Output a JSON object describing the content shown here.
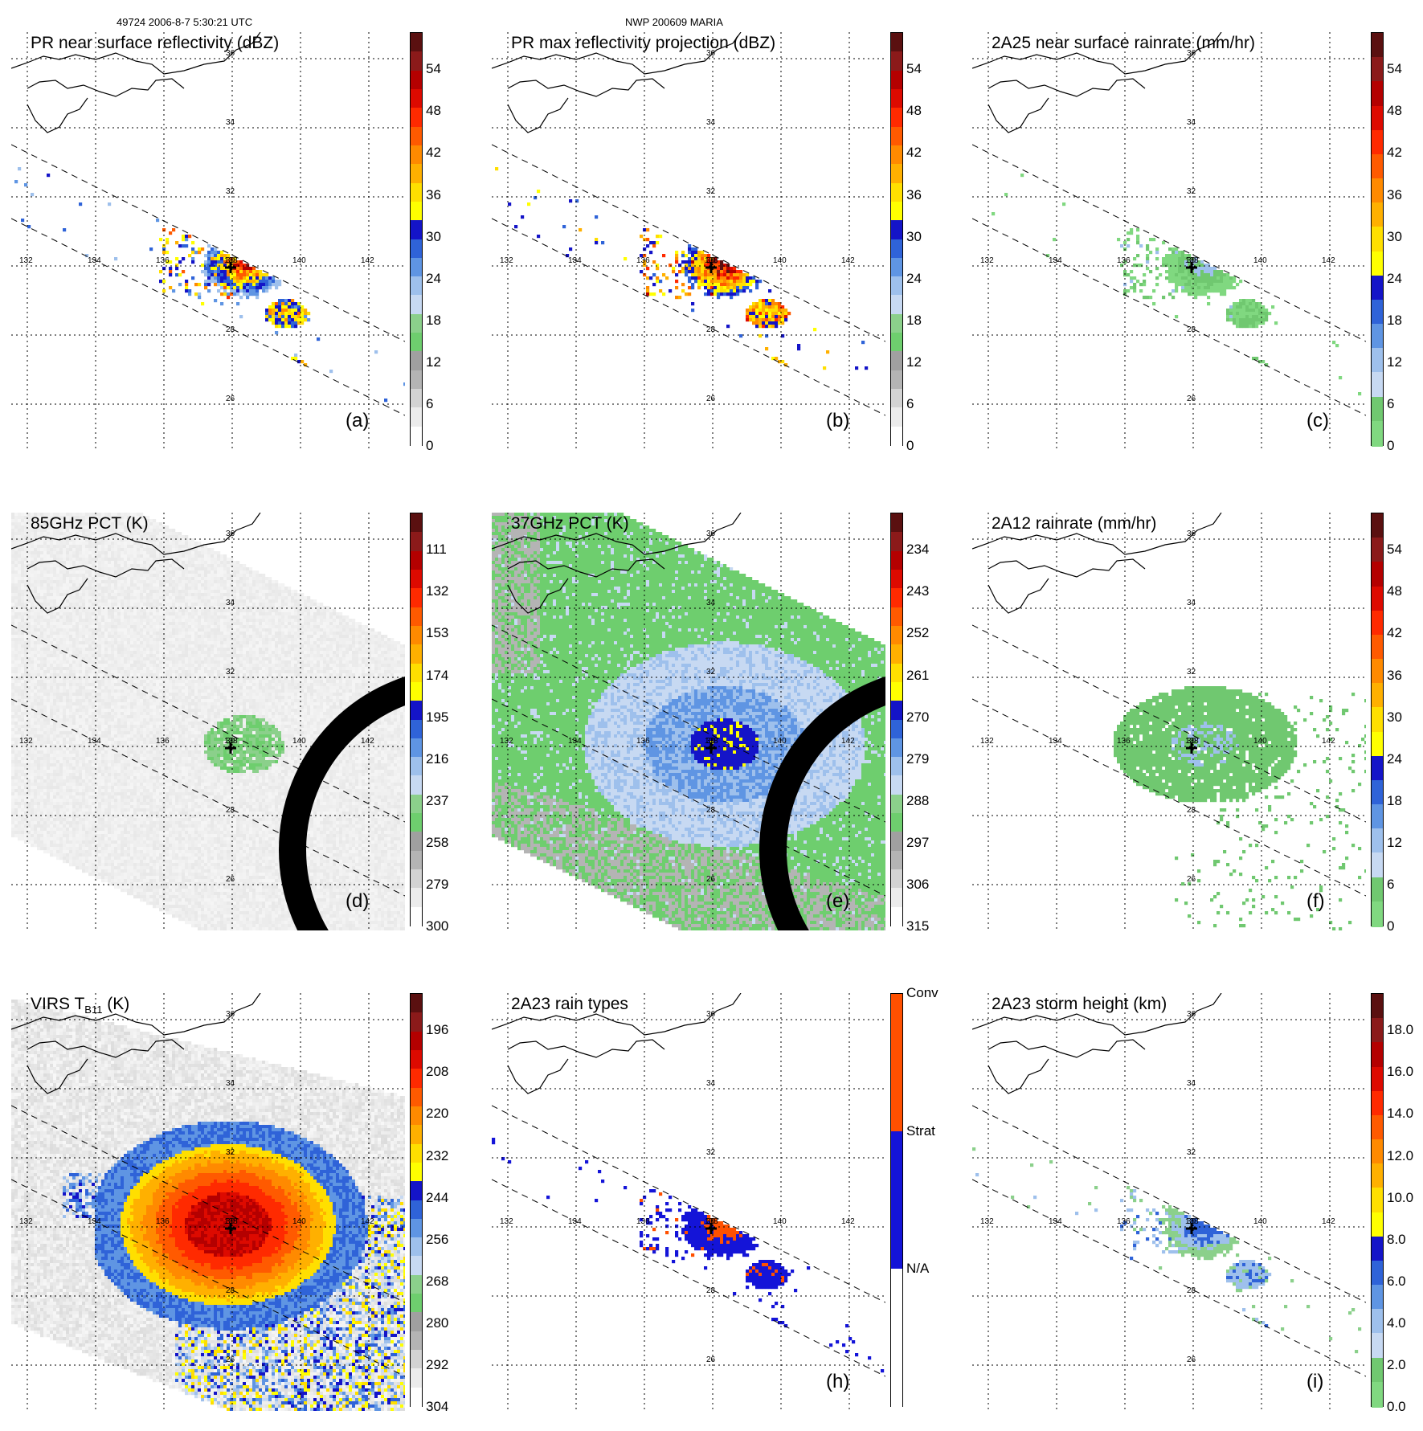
{
  "header": {
    "orbit_info": "49724 2006-8-7 5:30:21 UTC",
    "storm_name": "NWP 200609 MARIA"
  },
  "lat_labels": [
    "36",
    "34",
    "32",
    "30",
    "28",
    "26"
  ],
  "lon_labels": [
    "132",
    "134",
    "136",
    "138",
    "140",
    "142"
  ],
  "panels": [
    {
      "id": "a",
      "title": "PR near surface reflectivity (dBZ)",
      "tag": "(a)",
      "scale": "dbz",
      "field": "pr_swath_weak",
      "ticks": [
        "54",
        "48",
        "42",
        "36",
        "30",
        "24",
        "18",
        "12",
        "6",
        "0"
      ]
    },
    {
      "id": "b",
      "title": "PR max reflectivity projection (dBZ)",
      "tag": "(b)",
      "scale": "dbz",
      "field": "pr_swath_strong",
      "ticks": [
        "54",
        "48",
        "42",
        "36",
        "30",
        "24",
        "18",
        "12",
        "6",
        "0"
      ]
    },
    {
      "id": "c",
      "title": "2A25 near surface rainrate (mm/hr)",
      "tag": "(c)",
      "scale": "rain",
      "field": "pr_swath_rain",
      "ticks": [
        "54",
        "48",
        "42",
        "36",
        "30",
        "24",
        "18",
        "12",
        "6",
        "0"
      ]
    },
    {
      "id": "d",
      "title": "85GHz PCT (K)",
      "tag": "(d)",
      "scale": "pct85",
      "field": "tmi85",
      "ticks": [
        "111",
        "132",
        "153",
        "174",
        "195",
        "216",
        "237",
        "258",
        "279",
        "300"
      ]
    },
    {
      "id": "e",
      "title": "37GHz PCT (K)",
      "tag": "(e)",
      "scale": "pct37",
      "field": "tmi37",
      "ticks": [
        "234",
        "243",
        "252",
        "261",
        "270",
        "279",
        "288",
        "297",
        "306",
        "315"
      ]
    },
    {
      "id": "f",
      "title": "2A12 rainrate (mm/hr)",
      "tag": "(f)",
      "scale": "rain",
      "field": "tmi_rain",
      "ticks": [
        "54",
        "48",
        "42",
        "36",
        "30",
        "24",
        "18",
        "12",
        "6",
        "0"
      ]
    },
    {
      "id": "g",
      "title": "VIRS T",
      "title_sub": "B11",
      "title_suffix": " (K)",
      "tag": "",
      "scale": "virs",
      "field": "virs",
      "ticks": [
        "196",
        "208",
        "220",
        "232",
        "244",
        "256",
        "268",
        "280",
        "292",
        "304"
      ]
    },
    {
      "id": "h",
      "title": "2A23 rain types",
      "tag": "(h)",
      "scale": "types",
      "field": "types",
      "ticks": [
        "Conv",
        "Strat",
        "N/A"
      ]
    },
    {
      "id": "i",
      "title": "2A23 storm height (km)",
      "tag": "(i)",
      "scale": "height",
      "field": "height",
      "ticks": [
        "18.0",
        "16.0",
        "14.0",
        "12.0",
        "10.0",
        "8.0",
        "6.0",
        "4.0",
        "2.0",
        "0.0"
      ]
    }
  ],
  "colors": {
    "dbz": [
      "#ffffff",
      "#ececec",
      "#d3d3d3",
      "#b4b4b4",
      "#a0a0a0",
      "#6ece6e",
      "#8bd08b",
      "#c7d9f2",
      "#9ec0ec",
      "#5f95e3",
      "#2f63d8",
      "#1414c8",
      "#ffff00",
      "#ffdf00",
      "#ffb000",
      "#ff8a00",
      "#ff5a00",
      "#ff2a00",
      "#dd0a00",
      "#b40000",
      "#8b1a1a",
      "#5a1010"
    ],
    "rain": [
      "#80d880",
      "#70c870",
      "#c7d9f2",
      "#9ec0ec",
      "#5f95e3",
      "#2f63d8",
      "#1414c8",
      "#ffff00",
      "#ffdf00",
      "#ffb000",
      "#ff8a00",
      "#ff5a00",
      "#ff2a00",
      "#dd0a00",
      "#b40000",
      "#8b1a1a",
      "#5a1010"
    ],
    "pct": [
      "#ffffff",
      "#ececec",
      "#d3d3d3",
      "#b4b4b4",
      "#a0a0a0",
      "#6ece6e",
      "#8bd08b",
      "#c7d9f2",
      "#9ec0ec",
      "#5f95e3",
      "#2f63d8",
      "#1414c8",
      "#ffff00",
      "#ffdf00",
      "#ffb000",
      "#ff8a00",
      "#ff5a00",
      "#ff2a00",
      "#dd0a00",
      "#b40000",
      "#8b1a1a",
      "#5a1010"
    ],
    "types": [
      "#ffffff",
      "#1414d8",
      "#ff5000"
    ]
  }
}
